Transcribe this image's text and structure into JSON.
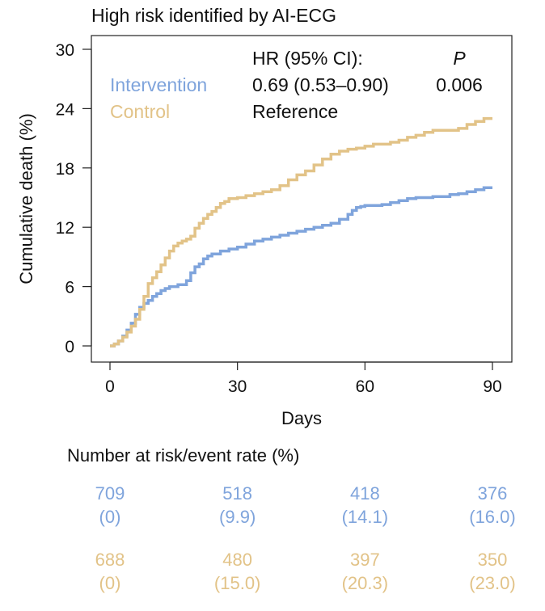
{
  "chart_data": {
    "type": "line",
    "title": "High risk identified by AI-ECG",
    "xlabel": "Days",
    "ylabel": "Cumulative death (%)",
    "xlim": [
      0,
      90
    ],
    "ylim": [
      0,
      30
    ],
    "xticks": [
      0,
      30,
      60,
      90
    ],
    "yticks": [
      0,
      6,
      12,
      18,
      24,
      30
    ],
    "grid": false,
    "legend": {
      "header_hr": "HR (95% CI):",
      "header_p": "P",
      "rows": [
        {
          "name": "Intervention",
          "hr": "0.69 (0.53–0.90)",
          "p": "0.006",
          "color": "#7fa4dc"
        },
        {
          "name": "Control",
          "hr": "Reference",
          "p": "",
          "color": "#e2c388"
        }
      ]
    },
    "series": [
      {
        "name": "Intervention",
        "color": "#7fa4dc",
        "x": [
          0,
          1,
          2,
          3,
          4,
          5,
          6,
          7,
          8,
          9,
          10,
          11,
          12,
          13,
          14,
          16,
          18,
          19,
          20,
          21,
          22,
          23,
          24,
          26,
          28,
          30,
          32,
          34,
          36,
          38,
          40,
          42,
          44,
          46,
          48,
          50,
          52,
          54,
          56,
          57,
          58,
          59,
          60,
          62,
          64,
          66,
          68,
          70,
          72,
          76,
          80,
          82,
          84,
          86,
          88,
          90
        ],
        "y": [
          0,
          0.2,
          0.5,
          1.0,
          1.6,
          2.3,
          3.2,
          3.9,
          4.3,
          4.6,
          5.0,
          5.3,
          5.6,
          5.8,
          6.0,
          6.2,
          6.6,
          7.4,
          8.0,
          8.3,
          8.8,
          9.1,
          9.3,
          9.6,
          9.8,
          10.0,
          10.3,
          10.6,
          10.8,
          11.0,
          11.2,
          11.4,
          11.6,
          11.8,
          12.0,
          12.2,
          12.4,
          12.8,
          13.3,
          13.7,
          14.0,
          14.1,
          14.2,
          14.2,
          14.3,
          14.5,
          14.7,
          14.9,
          15.0,
          15.1,
          15.3,
          15.4,
          15.6,
          15.8,
          16.0,
          16.0
        ]
      },
      {
        "name": "Control",
        "color": "#e2c388",
        "x": [
          0,
          1,
          2,
          3,
          4,
          5,
          6,
          7,
          8,
          9,
          10,
          11,
          12,
          13,
          14,
          15,
          16,
          17,
          18,
          19,
          20,
          21,
          22,
          23,
          24,
          25,
          26,
          27,
          28,
          30,
          32,
          34,
          36,
          38,
          40,
          42,
          44,
          46,
          48,
          50,
          52,
          54,
          56,
          58,
          60,
          62,
          64,
          66,
          68,
          70,
          72,
          74,
          76,
          78,
          80,
          82,
          84,
          86,
          88,
          90
        ],
        "y": [
          0,
          0.2,
          0.5,
          0.9,
          1.4,
          2.0,
          2.7,
          3.7,
          5.0,
          6.3,
          6.9,
          7.5,
          8.2,
          8.9,
          9.6,
          10.1,
          10.4,
          10.6,
          10.8,
          11.1,
          11.9,
          12.4,
          12.9,
          13.3,
          13.6,
          14.0,
          14.4,
          14.6,
          14.9,
          15.0,
          15.2,
          15.4,
          15.6,
          15.8,
          16.2,
          16.8,
          17.3,
          17.7,
          18.3,
          18.9,
          19.4,
          19.7,
          19.9,
          20.0,
          20.2,
          20.4,
          20.4,
          20.6,
          20.8,
          21.1,
          21.3,
          21.6,
          21.8,
          21.8,
          21.8,
          22.0,
          22.4,
          22.7,
          23.0,
          23.0
        ]
      }
    ],
    "risk_table": {
      "title": "Number at risk/event rate (%)",
      "days": [
        0,
        30,
        60,
        90
      ],
      "rows": [
        {
          "name": "Intervention",
          "color": "#7fa4dc",
          "counts": [
            "709",
            "518",
            "418",
            "376"
          ],
          "rates": [
            "(0)",
            "(9.9)",
            "(14.1)",
            "(16.0)"
          ]
        },
        {
          "name": "Control",
          "color": "#e2c388",
          "counts": [
            "688",
            "480",
            "397",
            "350"
          ],
          "rates": [
            "(0)",
            "(15.0)",
            "(20.3)",
            "(23.0)"
          ]
        }
      ]
    }
  }
}
